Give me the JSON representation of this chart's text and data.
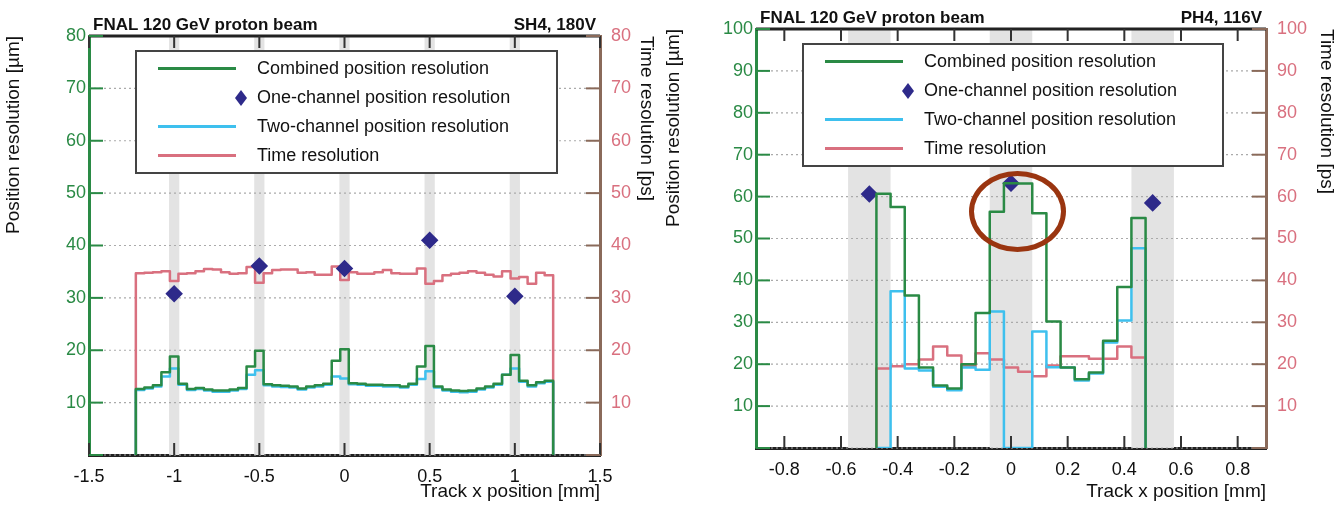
{
  "chart_data": [
    {
      "type": "step",
      "title": "FNAL 120 GeV proton beam",
      "subtitle": "SH4, 180V",
      "xlabel": "Track x position [mm]",
      "ylabel": "Position resolution [µm]",
      "y2label": "Time resolution [ps]",
      "x": [
        -1.225,
        -1.175,
        -1.125,
        -1.075,
        -1.025,
        -0.975,
        -0.925,
        -0.875,
        -0.825,
        -0.775,
        -0.725,
        -0.675,
        -0.625,
        -0.575,
        -0.525,
        -0.475,
        -0.425,
        -0.375,
        -0.325,
        -0.275,
        -0.225,
        -0.175,
        -0.125,
        -0.075,
        -0.025,
        0.025,
        0.075,
        0.125,
        0.175,
        0.225,
        0.275,
        0.325,
        0.375,
        0.425,
        0.475,
        0.525,
        0.575,
        0.625,
        0.675,
        0.725,
        0.775,
        0.825,
        0.875,
        0.925,
        0.975,
        1.025,
        1.075,
        1.125,
        1.175,
        1.225,
        1.225
      ],
      "series": [
        {
          "name": "Combined position resolution",
          "color": "#2a8a45",
          "values": [
            0,
            12.6,
            12.9,
            13.3,
            15.8,
            18.8,
            13.6,
            12.6,
            12.8,
            12.5,
            12.3,
            12.3,
            12.5,
            12.8,
            16.9,
            19.9,
            13.5,
            13.3,
            13.2,
            13.1,
            12.7,
            13.1,
            13.3,
            13.6,
            18.0,
            20.2,
            13.7,
            13.6,
            13.4,
            13.4,
            13.3,
            13.3,
            13.1,
            13.6,
            16.9,
            20.8,
            13.1,
            12.5,
            12.3,
            12.2,
            12.3,
            12.7,
            13.1,
            13.6,
            15.3,
            19.1,
            14.2,
            13.3,
            13.9,
            14.2,
            0
          ]
        },
        {
          "name": "One-channel position resolution",
          "type": "scatter",
          "marker": "diamond",
          "color": "#2e2a8a",
          "x": [
            -1,
            -0.5,
            0,
            0.5,
            1
          ],
          "values": [
            30.8,
            36.1,
            35.6,
            41.0,
            30.3
          ]
        },
        {
          "name": "Two-channel position resolution",
          "color": "#3ec0ee",
          "values": [
            0,
            12.4,
            12.7,
            13.1,
            15.0,
            16.5,
            13.4,
            12.4,
            12.6,
            12.3,
            12.1,
            12.1,
            12.3,
            12.6,
            15.3,
            16.2,
            13.3,
            13.1,
            13.0,
            12.9,
            12.5,
            12.9,
            13.1,
            13.4,
            15.0,
            14.6,
            13.5,
            13.4,
            13.2,
            13.2,
            13.1,
            13.1,
            12.9,
            13.4,
            14.5,
            16.0,
            12.9,
            12.3,
            12.1,
            12.0,
            12.1,
            12.5,
            12.9,
            13.4,
            15.3,
            16.5,
            14.0,
            13.1,
            13.7,
            14.0,
            0
          ]
        },
        {
          "name": "Time resolution",
          "color": "#d9707f",
          "axis": "y2",
          "values": [
            0,
            34.7,
            34.8,
            34.9,
            35.1,
            33.2,
            34.6,
            34.7,
            35.1,
            35.5,
            35.4,
            34.9,
            34.6,
            34.7,
            35.9,
            32.9,
            34.7,
            35.3,
            35.4,
            35.4,
            34.8,
            34.9,
            34.4,
            34.4,
            36.0,
            33.4,
            34.9,
            34.6,
            34.6,
            34.9,
            35.3,
            34.7,
            34.6,
            34.6,
            35.6,
            32.7,
            33.2,
            34.3,
            34.6,
            34.8,
            35.1,
            34.8,
            34.4,
            34.1,
            35.1,
            33.7,
            34.0,
            32.7,
            34.8,
            34.3,
            0
          ]
        }
      ],
      "xlim": [
        -1.5,
        1.5
      ],
      "xticks": [
        -1.5,
        -1,
        -0.5,
        0,
        0.5,
        1,
        1.5
      ],
      "ylim": [
        0,
        80
      ],
      "yticks": [
        {
          "value": 0,
          "label": null
        },
        10,
        20,
        30,
        40,
        50,
        60,
        70,
        80
      ],
      "y2lim": [
        0,
        80
      ],
      "y2ticks": [
        {
          "value": 0,
          "label": null
        },
        10,
        20,
        30,
        40,
        50,
        60,
        70,
        80
      ],
      "bands": [
        {
          "axis": "x",
          "from": -1.03,
          "to": -0.97,
          "color": "#e3e3e3"
        },
        {
          "axis": "x",
          "from": -0.53,
          "to": -0.47,
          "color": "#e3e3e3"
        },
        {
          "axis": "x",
          "from": -0.03,
          "to": 0.03,
          "color": "#e3e3e3"
        },
        {
          "axis": "x",
          "from": 0.47,
          "to": 0.53,
          "color": "#e3e3e3"
        },
        {
          "axis": "x",
          "from": 0.97,
          "to": 1.03,
          "color": "#e3e3e3"
        }
      ],
      "grid": "y",
      "legend": "top",
      "marker": "none"
    },
    {
      "type": "step",
      "title": "FNAL 120 GeV proton beam",
      "subtitle": "PH4, 116V",
      "xlabel": "Track x position [mm]",
      "ylabel": "Position resolution [µm]",
      "y2label": "Time resolution [ps]",
      "x": [
        -0.475,
        -0.425,
        -0.375,
        -0.325,
        -0.275,
        -0.225,
        -0.175,
        -0.125,
        -0.075,
        -0.025,
        0.025,
        0.075,
        0.125,
        0.175,
        0.225,
        0.275,
        0.325,
        0.375,
        0.425,
        0.475,
        0.475
      ],
      "series": [
        {
          "name": "Combined position resolution",
          "color": "#2a8a45",
          "values": [
            0,
            60.7,
            57.5,
            36.4,
            19.2,
            14.9,
            14.2,
            20.0,
            32.2,
            56.4,
            63.2,
            63.1,
            56.0,
            30.2,
            19.2,
            16.4,
            18.0,
            25.6,
            38.4,
            54.9,
            0
          ]
        },
        {
          "name": "One-channel position resolution",
          "type": "scatter",
          "marker": "diamond",
          "color": "#2e2a8a",
          "x": [
            -0.5,
            0,
            0.5
          ],
          "values": [
            60.6,
            63.2,
            58.5
          ]
        },
        {
          "name": "Two-channel position resolution",
          "color": "#3ec0ee",
          "values": [
            0,
            0,
            37.4,
            19.0,
            18.5,
            14.6,
            13.8,
            19.2,
            18.7,
            32.6,
            0,
            0,
            27.8,
            19.3,
            19.2,
            16.1,
            17.8,
            25.2,
            30.4,
            47.7,
            0
          ]
        },
        {
          "name": "Time resolution",
          "color": "#d9707f",
          "axis": "y2",
          "values": [
            0,
            19.0,
            19.5,
            20.0,
            21.1,
            24.2,
            22.1,
            19.5,
            22.6,
            21.1,
            19.2,
            18.2,
            17.1,
            19.7,
            21.9,
            21.9,
            21.3,
            21.3,
            24.2,
            21.6,
            0
          ]
        }
      ],
      "xlim": [
        -0.9,
        0.9
      ],
      "xticks": [
        -0.8,
        -0.6,
        -0.4,
        -0.2,
        0,
        0.2,
        0.4,
        0.6,
        0.8
      ],
      "ylim": [
        0,
        100
      ],
      "yticks": [
        {
          "value": 0,
          "label": null
        },
        10,
        20,
        30,
        40,
        50,
        60,
        70,
        80,
        90,
        100
      ],
      "y2lim": [
        0,
        100
      ],
      "y2ticks": [
        {
          "value": 0,
          "label": null
        },
        10,
        20,
        30,
        40,
        50,
        60,
        70,
        80,
        90,
        100
      ],
      "bands": [
        {
          "axis": "x",
          "from": -0.575,
          "to": -0.425,
          "color": "#e3e3e3"
        },
        {
          "axis": "x",
          "from": -0.075,
          "to": 0.075,
          "color": "#e3e3e3"
        },
        {
          "axis": "x",
          "from": 0.425,
          "to": 0.575,
          "color": "#e3e3e3"
        }
      ],
      "grid": "y",
      "legend": "top",
      "marker": "none"
    }
  ]
}
